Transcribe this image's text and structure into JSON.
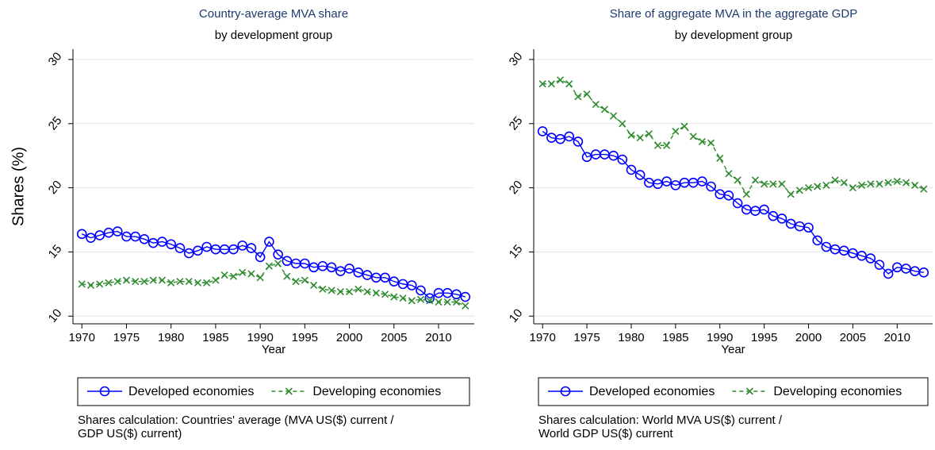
{
  "chart_data": [
    {
      "type": "line",
      "title": "Country-average MVA share",
      "subtitle": "by development group",
      "ylabel": "Shares (%)",
      "xlabel": "Year",
      "x": [
        1970,
        1971,
        1972,
        1973,
        1974,
        1975,
        1976,
        1977,
        1978,
        1979,
        1980,
        1981,
        1982,
        1983,
        1984,
        1985,
        1986,
        1987,
        1988,
        1989,
        1990,
        1991,
        1992,
        1993,
        1994,
        1995,
        1996,
        1997,
        1998,
        1999,
        2000,
        2001,
        2002,
        2003,
        2004,
        2005,
        2006,
        2007,
        2008,
        2009,
        2010,
        2011,
        2012,
        2013
      ],
      "series": [
        {
          "name": "Developed economies",
          "color": "#0000ff",
          "marker": "circle",
          "dash": false,
          "values": [
            16.4,
            16.1,
            16.3,
            16.5,
            16.6,
            16.2,
            16.2,
            16.0,
            15.7,
            15.8,
            15.6,
            15.3,
            14.9,
            15.1,
            15.4,
            15.2,
            15.2,
            15.2,
            15.5,
            15.3,
            14.6,
            15.8,
            14.8,
            14.3,
            14.1,
            14.1,
            13.8,
            13.9,
            13.8,
            13.5,
            13.7,
            13.4,
            13.2,
            13.0,
            13.0,
            12.7,
            12.5,
            12.4,
            12.0,
            11.4,
            11.8,
            11.8,
            11.7,
            11.5
          ]
        },
        {
          "name": "Developing economies",
          "color": "#2e8b2e",
          "marker": "x",
          "dash": true,
          "values": [
            12.5,
            12.4,
            12.5,
            12.6,
            12.7,
            12.8,
            12.7,
            12.7,
            12.8,
            12.8,
            12.6,
            12.7,
            12.7,
            12.6,
            12.6,
            12.8,
            13.2,
            13.1,
            13.4,
            13.3,
            13.0,
            13.9,
            14.1,
            13.1,
            12.7,
            12.8,
            12.4,
            12.1,
            12.0,
            11.9,
            11.9,
            12.1,
            11.9,
            11.8,
            11.7,
            11.5,
            11.4,
            11.2,
            11.3,
            11.2,
            11.1,
            11.1,
            11.1,
            10.8
          ]
        }
      ],
      "xlim": [
        1969,
        2014
      ],
      "xticks": [
        1970,
        1975,
        1980,
        1985,
        1990,
        1995,
        2000,
        2005,
        2010
      ],
      "ylim": [
        9.4,
        30.8
      ],
      "yticks": [
        10,
        15,
        20,
        25,
        30
      ],
      "grid": true,
      "notes": [
        "Shares calculation: Countries' average (MVA US($) current /",
        "GDP US($) current)"
      ]
    },
    {
      "type": "line",
      "title": "Share of aggregate MVA in the aggregate GDP",
      "subtitle": "by development group",
      "xlabel": "Year",
      "x": [
        1970,
        1971,
        1972,
        1973,
        1974,
        1975,
        1976,
        1977,
        1978,
        1979,
        1980,
        1981,
        1982,
        1983,
        1984,
        1985,
        1986,
        1987,
        1988,
        1989,
        1990,
        1991,
        1992,
        1993,
        1994,
        1995,
        1996,
        1997,
        1998,
        1999,
        2000,
        2001,
        2002,
        2003,
        2004,
        2005,
        2006,
        2007,
        2008,
        2009,
        2010,
        2011,
        2012,
        2013
      ],
      "series": [
        {
          "name": "Developed economies",
          "color": "#0000ff",
          "marker": "circle",
          "dash": false,
          "values": [
            24.4,
            23.9,
            23.8,
            24.0,
            23.6,
            22.4,
            22.6,
            22.6,
            22.5,
            22.2,
            21.4,
            21.0,
            20.4,
            20.3,
            20.5,
            20.2,
            20.4,
            20.4,
            20.5,
            20.1,
            19.5,
            19.4,
            18.8,
            18.3,
            18.2,
            18.3,
            17.8,
            17.6,
            17.2,
            17.0,
            16.9,
            15.9,
            15.4,
            15.2,
            15.1,
            14.9,
            14.7,
            14.5,
            14.0,
            13.3,
            13.8,
            13.7,
            13.5,
            13.4
          ]
        },
        {
          "name": "Developing economies",
          "color": "#2e8b2e",
          "marker": "x",
          "dash": true,
          "values": [
            28.1,
            28.1,
            28.4,
            28.1,
            27.1,
            27.3,
            26.5,
            26.1,
            25.6,
            25.0,
            24.1,
            23.9,
            24.2,
            23.3,
            23.3,
            24.4,
            24.8,
            24.0,
            23.6,
            23.5,
            22.3,
            21.1,
            20.6,
            19.5,
            20.6,
            20.3,
            20.3,
            20.3,
            19.5,
            19.8,
            20.0,
            20.1,
            20.2,
            20.6,
            20.4,
            20.0,
            20.2,
            20.3,
            20.3,
            20.4,
            20.5,
            20.4,
            20.2,
            19.9
          ]
        }
      ],
      "xlim": [
        1969,
        2014
      ],
      "xticks": [
        1970,
        1975,
        1980,
        1985,
        1990,
        1995,
        2000,
        2005,
        2010
      ],
      "ylim": [
        9.4,
        30.8
      ],
      "yticks": [
        10,
        15,
        20,
        25,
        30
      ],
      "grid": true,
      "notes": [
        "Shares calculation: World MVA US($) current /",
        "World GDP US($) current"
      ]
    }
  ]
}
